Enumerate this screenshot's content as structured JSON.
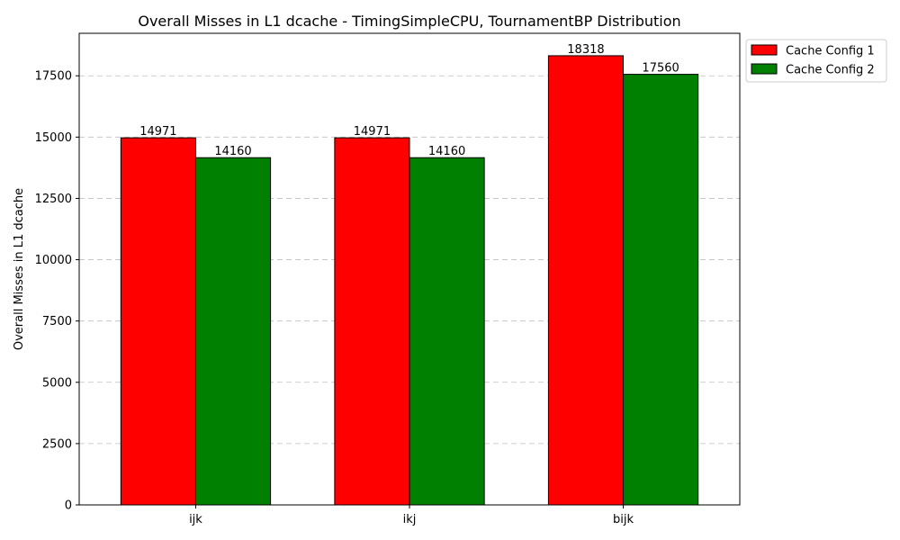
{
  "chart_data": {
    "type": "bar",
    "title": "Overall Misses in L1 dcache - TimingSimpleCPU, TournamentBP Distribution",
    "xlabel": "",
    "ylabel": "Overall Misses in L1 dcache",
    "categories": [
      "ijk",
      "ikj",
      "bijk"
    ],
    "series": [
      {
        "name": "Cache Config 1",
        "color": "#ff0000",
        "values": [
          14971,
          14971,
          18318
        ]
      },
      {
        "name": "Cache Config 2",
        "color": "#008000",
        "values": [
          14160,
          14160,
          17560
        ]
      }
    ],
    "ylim": [
      0,
      19233
    ],
    "yticks": [
      0,
      2500,
      5000,
      7500,
      10000,
      12500,
      15000,
      17500
    ],
    "grid": "y-dashed",
    "legend_position": "outside-top-right"
  }
}
